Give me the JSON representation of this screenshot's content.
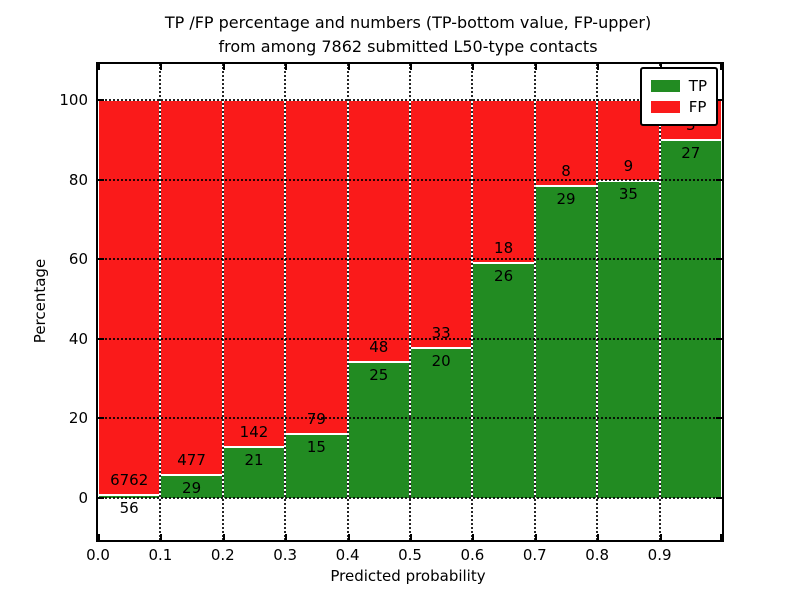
{
  "title": {
    "line1": "TP /FP percentage and numbers (TP-bottom value, FP-upper)",
    "line2": "from among 7862 submitted L50-type contacts"
  },
  "axes": {
    "xlabel": "Predicted probability",
    "ylabel": "Percentage",
    "x_tick_labels": [
      "0.0",
      "0.1",
      "0.2",
      "0.3",
      "0.4",
      "0.5",
      "0.6",
      "0.7",
      "0.8",
      "0.9"
    ],
    "y_tick_labels": [
      "0",
      "20",
      "40",
      "60",
      "80",
      "100"
    ],
    "y_tick_values": [
      0,
      20,
      40,
      60,
      80,
      100
    ]
  },
  "legend": {
    "items": [
      {
        "label": "TP",
        "color": "#228b22"
      },
      {
        "label": "FP",
        "color": "#fa1a1a"
      }
    ]
  },
  "colors": {
    "tp": "#228b22",
    "fp": "#fa1a1a",
    "bar_edge": "#ffffff",
    "grid": "#000000",
    "frame": "#000000"
  },
  "chart_data": {
    "type": "bar",
    "stacked": true,
    "normalized_to_percent": true,
    "title": "TP /FP percentage and numbers (TP-bottom value, FP-upper) from among 7862 submitted L50-type contacts",
    "xlabel": "Predicted probability",
    "ylabel": "Percentage",
    "categories": [
      "0.0",
      "0.1",
      "0.2",
      "0.3",
      "0.4",
      "0.5",
      "0.6",
      "0.7",
      "0.8",
      "0.9"
    ],
    "bin_width": 0.1,
    "series": [
      {
        "name": "TP",
        "values": [
          56,
          29,
          21,
          15,
          25,
          20,
          26,
          29,
          35,
          27
        ]
      },
      {
        "name": "FP",
        "values": [
          6762,
          477,
          142,
          79,
          48,
          33,
          18,
          8,
          9,
          3
        ]
      }
    ],
    "tp_percent": [
      0.82,
      5.73,
      12.88,
      15.96,
      34.25,
      37.74,
      59.09,
      78.38,
      79.55,
      90.0
    ],
    "total_contacts": 7862,
    "xlim": [
      0.0,
      1.0
    ],
    "ylim": [
      -10,
      110
    ],
    "grid": "dotted",
    "legend_position": "upper right"
  }
}
